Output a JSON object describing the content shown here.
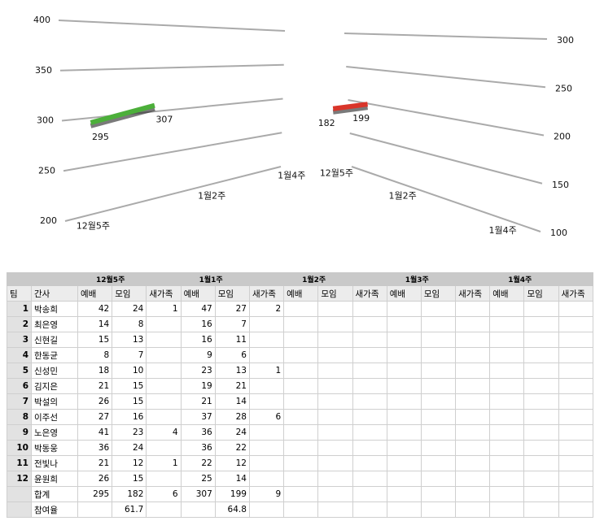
{
  "chart_data": [
    {
      "type": "line3d",
      "categories": [
        "12월5주",
        null,
        "1월2주",
        null,
        "1월4주"
      ],
      "series": [
        {
          "color": "#4caf3a",
          "values": [
            295,
            307,
            null,
            null,
            null
          ]
        }
      ],
      "ylim": [
        200,
        400
      ],
      "yticks": [
        200,
        250,
        300,
        350,
        400
      ],
      "grid": true
    },
    {
      "type": "line3d",
      "categories": [
        "12월5주",
        null,
        "1월2주",
        null,
        "1월4주"
      ],
      "series": [
        {
          "color": "#d9352a",
          "values": [
            182,
            199,
            null,
            null,
            null
          ]
        }
      ],
      "ylim": [
        100,
        300
      ],
      "yticks": [
        100,
        150,
        200,
        250,
        300
      ],
      "grid": true
    }
  ],
  "table": {
    "weeks": [
      "12월5주",
      "1월1주",
      "1월2주",
      "1월3주",
      "1월4주"
    ],
    "columns": [
      "팀",
      "간사"
    ],
    "subcolumns": [
      "예배",
      "모임",
      "새가족"
    ],
    "rows": [
      {
        "team": 1,
        "name": "박송희",
        "weeks": [
          [
            42,
            24,
            1
          ],
          [
            47,
            27,
            2
          ]
        ]
      },
      {
        "team": 2,
        "name": "최은영",
        "weeks": [
          [
            14,
            8,
            null
          ],
          [
            16,
            7,
            null
          ]
        ]
      },
      {
        "team": 3,
        "name": "신현길",
        "weeks": [
          [
            15,
            13,
            null
          ],
          [
            16,
            11,
            null
          ]
        ]
      },
      {
        "team": 4,
        "name": "한동균",
        "weeks": [
          [
            8,
            7,
            null
          ],
          [
            9,
            6,
            null
          ]
        ]
      },
      {
        "team": 5,
        "name": "신성민",
        "weeks": [
          [
            18,
            10,
            null
          ],
          [
            23,
            13,
            1
          ]
        ]
      },
      {
        "team": 6,
        "name": "김지은",
        "weeks": [
          [
            21,
            15,
            null
          ],
          [
            19,
            21,
            null
          ]
        ]
      },
      {
        "team": 7,
        "name": "박설의",
        "weeks": [
          [
            26,
            15,
            null
          ],
          [
            21,
            14,
            null
          ]
        ]
      },
      {
        "team": 8,
        "name": "이주선",
        "weeks": [
          [
            27,
            16,
            null
          ],
          [
            37,
            28,
            6
          ]
        ]
      },
      {
        "team": 9,
        "name": "노은영",
        "weeks": [
          [
            41,
            23,
            4
          ],
          [
            36,
            24,
            null
          ]
        ]
      },
      {
        "team": 10,
        "name": "박동웅",
        "weeks": [
          [
            36,
            24,
            null
          ],
          [
            36,
            22,
            null
          ]
        ]
      },
      {
        "team": 11,
        "name": "전빛나",
        "weeks": [
          [
            21,
            12,
            1
          ],
          [
            22,
            12,
            null
          ]
        ]
      },
      {
        "team": 12,
        "name": "윤원희",
        "weeks": [
          [
            26,
            15,
            null
          ],
          [
            25,
            14,
            null
          ]
        ]
      },
      {
        "team": null,
        "name": "합계",
        "weeks": [
          [
            295,
            182,
            6
          ],
          [
            307,
            199,
            9
          ]
        ]
      },
      {
        "team": null,
        "name": "참여율",
        "weeks": [
          [
            null,
            61.7,
            null
          ],
          [
            null,
            64.8,
            null
          ]
        ]
      }
    ]
  }
}
